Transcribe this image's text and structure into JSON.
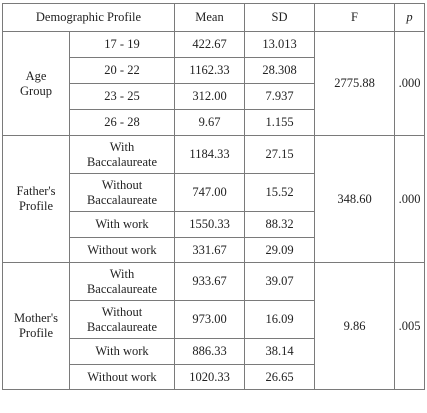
{
  "headers": {
    "profile": "Demographic Profile",
    "mean": "Mean",
    "sd": "SD",
    "f": "F",
    "p": "p"
  },
  "groups": [
    {
      "label_lines": [
        "Age",
        "Group"
      ],
      "f": "2775.88",
      "p": ".000",
      "rows": [
        {
          "category_lines": [
            "17 - 19"
          ],
          "mean": "422.67",
          "sd": "13.013"
        },
        {
          "category_lines": [
            "20 - 22"
          ],
          "mean": "1162.33",
          "sd": "28.308"
        },
        {
          "category_lines": [
            "23 - 25"
          ],
          "mean": "312.00",
          "sd": "7.937"
        },
        {
          "category_lines": [
            "26 - 28"
          ],
          "mean": "9.67",
          "sd": "1.155"
        }
      ]
    },
    {
      "label_lines": [
        "Father's",
        "Profile"
      ],
      "f": "348.60",
      "p": ".000",
      "rows": [
        {
          "category_lines": [
            "With",
            "Baccalaureate"
          ],
          "mean": "1184.33",
          "sd": "27.15"
        },
        {
          "category_lines": [
            "Without",
            "Baccalaureate"
          ],
          "mean": "747.00",
          "sd": "15.52"
        },
        {
          "category_lines": [
            "With work"
          ],
          "mean": "1550.33",
          "sd": "88.32"
        },
        {
          "category_lines": [
            "Without work"
          ],
          "mean": "331.67",
          "sd": "29.09"
        }
      ]
    },
    {
      "label_lines": [
        "Mother's",
        "Profile"
      ],
      "f": "9.86",
      "p": ".005",
      "rows": [
        {
          "category_lines": [
            "With",
            "Baccalaureate"
          ],
          "mean": "933.67",
          "sd": "39.07"
        },
        {
          "category_lines": [
            "Without",
            "Baccalaureate"
          ],
          "mean": "973.00",
          "sd": "16.09"
        },
        {
          "category_lines": [
            "With work"
          ],
          "mean": "886.33",
          "sd": "38.14"
        },
        {
          "category_lines": [
            "Without work"
          ],
          "mean": "1020.33",
          "sd": "26.65"
        }
      ]
    }
  ]
}
